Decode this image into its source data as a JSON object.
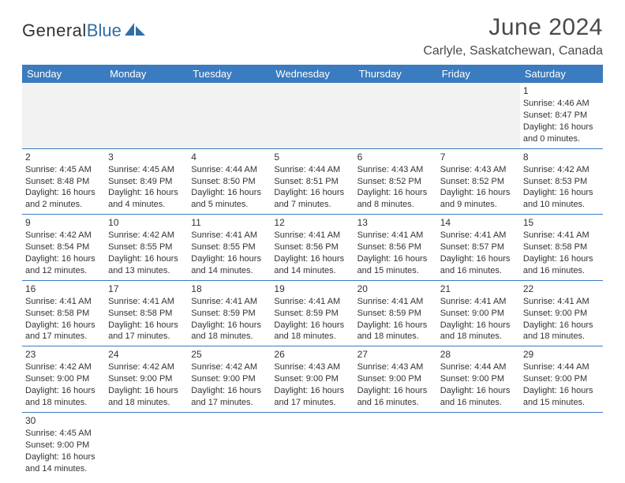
{
  "logo": {
    "text1": "General",
    "text2": "Blue"
  },
  "title": "June 2024",
  "location": "Carlyle, Saskatchewan, Canada",
  "colors": {
    "header_bg": "#3b7bbf",
    "header_text": "#ffffff",
    "border": "#3b7bbf",
    "text": "#333333",
    "logo_blue": "#2f6fa7",
    "blank_bg": "#f2f2f2"
  },
  "weekdays": [
    "Sunday",
    "Monday",
    "Tuesday",
    "Wednesday",
    "Thursday",
    "Friday",
    "Saturday"
  ],
  "weeks": [
    [
      null,
      null,
      null,
      null,
      null,
      null,
      {
        "n": "1",
        "sr": "Sunrise: 4:46 AM",
        "ss": "Sunset: 8:47 PM",
        "dl1": "Daylight: 16 hours",
        "dl2": "and 0 minutes."
      }
    ],
    [
      {
        "n": "2",
        "sr": "Sunrise: 4:45 AM",
        "ss": "Sunset: 8:48 PM",
        "dl1": "Daylight: 16 hours",
        "dl2": "and 2 minutes."
      },
      {
        "n": "3",
        "sr": "Sunrise: 4:45 AM",
        "ss": "Sunset: 8:49 PM",
        "dl1": "Daylight: 16 hours",
        "dl2": "and 4 minutes."
      },
      {
        "n": "4",
        "sr": "Sunrise: 4:44 AM",
        "ss": "Sunset: 8:50 PM",
        "dl1": "Daylight: 16 hours",
        "dl2": "and 5 minutes."
      },
      {
        "n": "5",
        "sr": "Sunrise: 4:44 AM",
        "ss": "Sunset: 8:51 PM",
        "dl1": "Daylight: 16 hours",
        "dl2": "and 7 minutes."
      },
      {
        "n": "6",
        "sr": "Sunrise: 4:43 AM",
        "ss": "Sunset: 8:52 PM",
        "dl1": "Daylight: 16 hours",
        "dl2": "and 8 minutes."
      },
      {
        "n": "7",
        "sr": "Sunrise: 4:43 AM",
        "ss": "Sunset: 8:52 PM",
        "dl1": "Daylight: 16 hours",
        "dl2": "and 9 minutes."
      },
      {
        "n": "8",
        "sr": "Sunrise: 4:42 AM",
        "ss": "Sunset: 8:53 PM",
        "dl1": "Daylight: 16 hours",
        "dl2": "and 10 minutes."
      }
    ],
    [
      {
        "n": "9",
        "sr": "Sunrise: 4:42 AM",
        "ss": "Sunset: 8:54 PM",
        "dl1": "Daylight: 16 hours",
        "dl2": "and 12 minutes."
      },
      {
        "n": "10",
        "sr": "Sunrise: 4:42 AM",
        "ss": "Sunset: 8:55 PM",
        "dl1": "Daylight: 16 hours",
        "dl2": "and 13 minutes."
      },
      {
        "n": "11",
        "sr": "Sunrise: 4:41 AM",
        "ss": "Sunset: 8:55 PM",
        "dl1": "Daylight: 16 hours",
        "dl2": "and 14 minutes."
      },
      {
        "n": "12",
        "sr": "Sunrise: 4:41 AM",
        "ss": "Sunset: 8:56 PM",
        "dl1": "Daylight: 16 hours",
        "dl2": "and 14 minutes."
      },
      {
        "n": "13",
        "sr": "Sunrise: 4:41 AM",
        "ss": "Sunset: 8:56 PM",
        "dl1": "Daylight: 16 hours",
        "dl2": "and 15 minutes."
      },
      {
        "n": "14",
        "sr": "Sunrise: 4:41 AM",
        "ss": "Sunset: 8:57 PM",
        "dl1": "Daylight: 16 hours",
        "dl2": "and 16 minutes."
      },
      {
        "n": "15",
        "sr": "Sunrise: 4:41 AM",
        "ss": "Sunset: 8:58 PM",
        "dl1": "Daylight: 16 hours",
        "dl2": "and 16 minutes."
      }
    ],
    [
      {
        "n": "16",
        "sr": "Sunrise: 4:41 AM",
        "ss": "Sunset: 8:58 PM",
        "dl1": "Daylight: 16 hours",
        "dl2": "and 17 minutes."
      },
      {
        "n": "17",
        "sr": "Sunrise: 4:41 AM",
        "ss": "Sunset: 8:58 PM",
        "dl1": "Daylight: 16 hours",
        "dl2": "and 17 minutes."
      },
      {
        "n": "18",
        "sr": "Sunrise: 4:41 AM",
        "ss": "Sunset: 8:59 PM",
        "dl1": "Daylight: 16 hours",
        "dl2": "and 18 minutes."
      },
      {
        "n": "19",
        "sr": "Sunrise: 4:41 AM",
        "ss": "Sunset: 8:59 PM",
        "dl1": "Daylight: 16 hours",
        "dl2": "and 18 minutes."
      },
      {
        "n": "20",
        "sr": "Sunrise: 4:41 AM",
        "ss": "Sunset: 8:59 PM",
        "dl1": "Daylight: 16 hours",
        "dl2": "and 18 minutes."
      },
      {
        "n": "21",
        "sr": "Sunrise: 4:41 AM",
        "ss": "Sunset: 9:00 PM",
        "dl1": "Daylight: 16 hours",
        "dl2": "and 18 minutes."
      },
      {
        "n": "22",
        "sr": "Sunrise: 4:41 AM",
        "ss": "Sunset: 9:00 PM",
        "dl1": "Daylight: 16 hours",
        "dl2": "and 18 minutes."
      }
    ],
    [
      {
        "n": "23",
        "sr": "Sunrise: 4:42 AM",
        "ss": "Sunset: 9:00 PM",
        "dl1": "Daylight: 16 hours",
        "dl2": "and 18 minutes."
      },
      {
        "n": "24",
        "sr": "Sunrise: 4:42 AM",
        "ss": "Sunset: 9:00 PM",
        "dl1": "Daylight: 16 hours",
        "dl2": "and 18 minutes."
      },
      {
        "n": "25",
        "sr": "Sunrise: 4:42 AM",
        "ss": "Sunset: 9:00 PM",
        "dl1": "Daylight: 16 hours",
        "dl2": "and 17 minutes."
      },
      {
        "n": "26",
        "sr": "Sunrise: 4:43 AM",
        "ss": "Sunset: 9:00 PM",
        "dl1": "Daylight: 16 hours",
        "dl2": "and 17 minutes."
      },
      {
        "n": "27",
        "sr": "Sunrise: 4:43 AM",
        "ss": "Sunset: 9:00 PM",
        "dl1": "Daylight: 16 hours",
        "dl2": "and 16 minutes."
      },
      {
        "n": "28",
        "sr": "Sunrise: 4:44 AM",
        "ss": "Sunset: 9:00 PM",
        "dl1": "Daylight: 16 hours",
        "dl2": "and 16 minutes."
      },
      {
        "n": "29",
        "sr": "Sunrise: 4:44 AM",
        "ss": "Sunset: 9:00 PM",
        "dl1": "Daylight: 16 hours",
        "dl2": "and 15 minutes."
      }
    ],
    [
      {
        "n": "30",
        "sr": "Sunrise: 4:45 AM",
        "ss": "Sunset: 9:00 PM",
        "dl1": "Daylight: 16 hours",
        "dl2": "and 14 minutes."
      },
      null,
      null,
      null,
      null,
      null,
      null
    ]
  ]
}
